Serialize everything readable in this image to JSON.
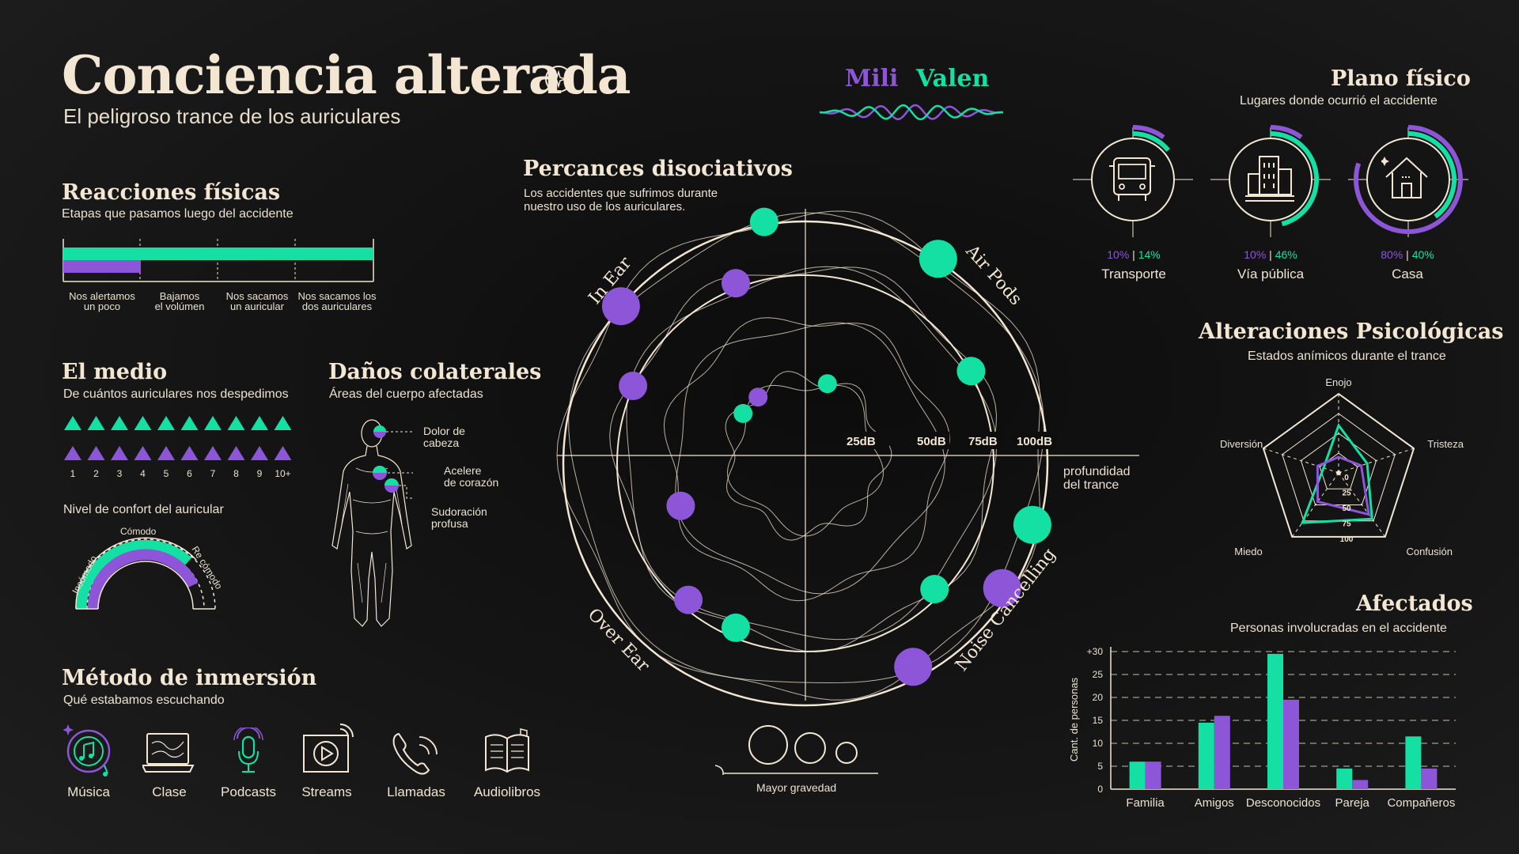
{
  "header": {
    "title": "Conciencia alterada",
    "subtitle": "El peligroso trance de los auriculares"
  },
  "legend": {
    "mili": "Mili",
    "valen": "Valen"
  },
  "colors": {
    "mili": "#8d56d8",
    "valen": "#14e0a4",
    "cream": "#f3e6d3",
    "background": "#111111"
  },
  "reacciones": {
    "title": "Reacciones físicas",
    "subtitle": "Etapas que pasamos luego del accidente",
    "stages": [
      "Nos alertamos\nun poco",
      "Bajamos\nel volúmen",
      "Nos sacamos\nun auricular",
      "Nos sacamos los\ndos auriculares"
    ],
    "valen_stages": 4,
    "mili_stages": 1
  },
  "medio": {
    "title": "El medio",
    "subtitle": "De cuántos auriculares nos despedimos",
    "scale": [
      "1",
      "2",
      "3",
      "4",
      "5",
      "6",
      "7",
      "8",
      "9",
      "10+"
    ],
    "valen_count": 10,
    "mili_count": 10,
    "confort_title": "Nivel de confort del auricular",
    "confort_labels": [
      "Incómodo",
      "Cómodo",
      "Re cómodo"
    ]
  },
  "danos": {
    "title": "Daños colaterales",
    "subtitle": "Áreas del cuerpo afectadas",
    "items": [
      "Dolor de\ncabeza",
      "Acelere\nde corazón",
      "Sudoración\nprofusa"
    ]
  },
  "metodo": {
    "title": "Método de inmersión",
    "subtitle": "Qué estabamos escuchando",
    "items": [
      {
        "label": "Música",
        "icon": "music-icon"
      },
      {
        "label": "Clase",
        "icon": "laptop-icon"
      },
      {
        "label": "Podcasts",
        "icon": "microphone-icon"
      },
      {
        "label": "Streams",
        "icon": "stream-icon"
      },
      {
        "label": "Llamadas",
        "icon": "phone-icon"
      },
      {
        "label": "Audiolibros",
        "icon": "book-icon"
      }
    ]
  },
  "percances": {
    "title": "Percances disociativos",
    "subtitle": "Los accidentes que sufrimos durante\nnuestro uso de los auriculares.",
    "quadrants": [
      "In Ear",
      "Air Pods",
      "Over Ear",
      "Noise Cancelling"
    ],
    "db_labels": [
      "25dB",
      "50dB",
      "75dB",
      "100dB"
    ],
    "axis_label": "profundidad\ndel trance",
    "severity_label": "Mayor gravedad"
  },
  "plano": {
    "title": "Plano físico",
    "subtitle": "Lugares donde ocurrió el accidente",
    "places": [
      {
        "label": "Transporte",
        "mili": "10%",
        "valen": "14%",
        "icon": "bus-icon"
      },
      {
        "label": "Vía pública",
        "mili": "10%",
        "valen": "46%",
        "icon": "buildings-icon"
      },
      {
        "label": "Casa",
        "mili": "80%",
        "valen": "40%",
        "icon": "house-icon"
      }
    ]
  },
  "alteraciones": {
    "title": "Alteraciones Psicológicas",
    "subtitle": "Estados anímicos durante el trance",
    "axes": [
      "Enojo",
      "Tristeza",
      "Confusión",
      "Miedo",
      "Diversión"
    ],
    "scale_labels": [
      "0",
      "25",
      "50",
      "75",
      "100"
    ]
  },
  "afectados": {
    "title": "Afectados",
    "subtitle": "Personas involucradas en el accidente"
  },
  "chart_data": [
    {
      "type": "bar",
      "title": "Afectados",
      "subtitle": "Personas involucradas en el accidente",
      "xlabel": "",
      "ylabel": "Cant. de personas",
      "categories": [
        "Familia",
        "Amigos",
        "Desconocidos",
        "Pareja",
        "Compañeros"
      ],
      "y_ticks": [
        "0",
        "5",
        "10",
        "15",
        "20",
        "25",
        "+30"
      ],
      "ylim": [
        0,
        30
      ],
      "grid": true,
      "series": [
        {
          "name": "Valen",
          "values": [
            6,
            14.5,
            29.5,
            4.5,
            11.5
          ]
        },
        {
          "name": "Mili",
          "values": [
            6,
            16,
            19.5,
            2,
            4.5
          ]
        }
      ]
    },
    {
      "type": "radar",
      "title": "Alteraciones Psicológicas",
      "axes": [
        "Enojo",
        "Tristeza",
        "Confusión",
        "Miedo",
        "Diversión"
      ],
      "range": [
        0,
        100
      ],
      "series": [
        {
          "name": "Valen",
          "values": [
            60,
            38,
            72,
            78,
            20
          ]
        },
        {
          "name": "Mili",
          "values": [
            20,
            30,
            65,
            45,
            28
          ]
        }
      ]
    },
    {
      "type": "scatter",
      "title": "Percances disociativos",
      "series": [
        {
          "name": "Mili",
          "points": [
            {
              "quadrant": "In Ear",
              "db": 100,
              "severity": 3
            },
            {
              "quadrant": "In Ear",
              "db": 75,
              "severity": 2
            },
            {
              "quadrant": "In Ear",
              "db": 75,
              "severity": 2
            },
            {
              "quadrant": "In Ear",
              "db": 25,
              "severity": 1
            },
            {
              "quadrant": "Over Ear",
              "db": 75,
              "severity": 2
            },
            {
              "quadrant": "Over Ear",
              "db": 50,
              "severity": 2
            },
            {
              "quadrant": "Noise Cancelling",
              "db": 100,
              "severity": 3
            },
            {
              "quadrant": "Noise Cancelling",
              "db": 100,
              "severity": 3
            }
          ]
        },
        {
          "name": "Valen",
          "points": [
            {
              "quadrant": "Air Pods",
              "db": 100,
              "severity": 3
            },
            {
              "quadrant": "Air Pods",
              "db": 75,
              "severity": 2
            },
            {
              "quadrant": "Air Pods",
              "db": 25,
              "severity": 1
            },
            {
              "quadrant": "In Ear",
              "db": 100,
              "severity": 2
            },
            {
              "quadrant": "In Ear",
              "db": 25,
              "severity": 1
            },
            {
              "quadrant": "Noise Cancelling",
              "db": 100,
              "severity": 3
            },
            {
              "quadrant": "Noise Cancelling",
              "db": 75,
              "severity": 2
            },
            {
              "quadrant": "Over Ear",
              "db": 75,
              "severity": 2
            }
          ]
        }
      ]
    }
  ]
}
